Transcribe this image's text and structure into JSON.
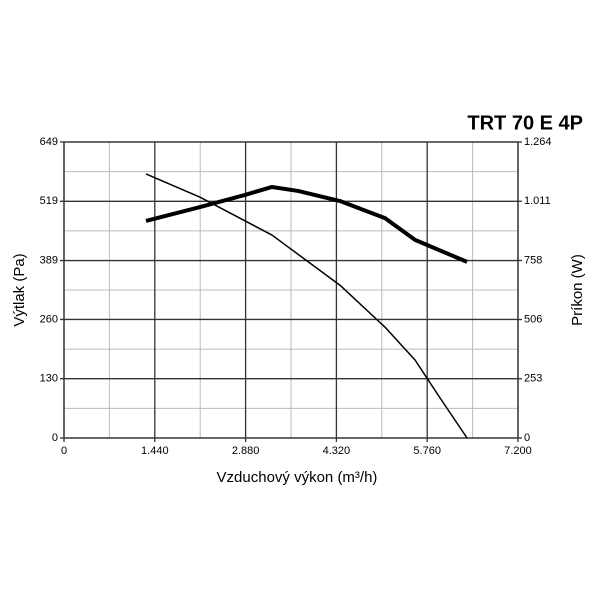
{
  "chart_data": {
    "type": "line",
    "title": "TRT 70 E 4P",
    "xlabel": "Vzduchový výkon (m³/h)",
    "ylabel": "Výtlak (Pa)",
    "y2label": "Príkon (W)",
    "xlim": [
      0,
      7200
    ],
    "xticks": [
      0,
      {
        "value": 1440,
        "label": "1.440"
      },
      {
        "value": 2880,
        "label": "2.880"
      },
      {
        "value": 4320,
        "label": "4.320"
      },
      {
        "value": 5760,
        "label": "5.760"
      },
      {
        "value": 7200,
        "label": "7.200"
      }
    ],
    "ylim": [
      0,
      649
    ],
    "yticks": [
      0,
      130,
      260,
      389,
      519,
      649
    ],
    "y2lim": [
      0,
      1264
    ],
    "y2ticks": [
      0,
      253,
      506,
      758,
      {
        "value": 1011,
        "label": "1.011"
      },
      {
        "value": 1264,
        "label": "1.264"
      }
    ],
    "grid": true,
    "minor_grid": true,
    "series": [
      {
        "color": "#000000",
        "width": 1.5,
        "x": [
          1300,
          2157,
          3298,
          4377,
          5091,
          5567,
          5963,
          6392
        ],
        "values": [
          579,
          528,
          445,
          335,
          243,
          171,
          88,
          0
        ]
      },
      {
        "color": "#000000",
        "width": 4,
        "axis": "y2",
        "x": [
          1300,
          2157,
          2870,
          3298,
          3711,
          4377,
          5091,
          5567,
          6392
        ],
        "values": [
          927,
          986,
          1038,
          1072,
          1055,
          1012,
          939,
          846,
          752
        ]
      }
    ]
  }
}
